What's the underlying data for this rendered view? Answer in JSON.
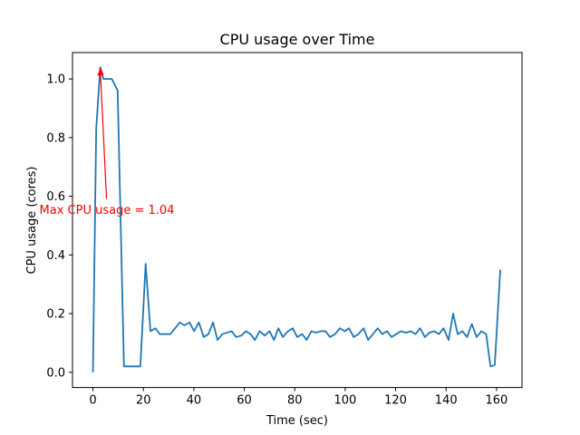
{
  "chart_data": {
    "type": "line",
    "title": "CPU usage over Time",
    "xlabel": "Time (sec)",
    "ylabel": "CPU usage (cores)",
    "xlim": [
      -8.1,
      170.1
    ],
    "ylim": [
      -0.052,
      1.09
    ],
    "xticks": [
      0,
      20,
      40,
      60,
      80,
      100,
      120,
      140,
      160
    ],
    "yticks": [
      0.0,
      0.2,
      0.4,
      0.6,
      0.8,
      1.0
    ],
    "grid": false,
    "colors": {
      "line": "#1f77b4",
      "annotation": "#ff0000"
    },
    "annotation": {
      "text": "Max CPU usage = 1.04",
      "point": [
        2.9,
        1.04
      ],
      "text_pos": [
        5.4,
        0.59
      ]
    },
    "series": [
      {
        "x": [
          0,
          1.3,
          2.9,
          4.2,
          5.3,
          7.5,
          9.8,
          12.3,
          14.0,
          16.3,
          18.8,
          20.9,
          22.8,
          24.8,
          26.5,
          28.7,
          30.7,
          32.6,
          34.4,
          36.3,
          38.3,
          40.1,
          42.0,
          43.9,
          45.8,
          47.6,
          49.4,
          51.3,
          53.1,
          55.0,
          56.8,
          58.8,
          60.7,
          62.5,
          64.2,
          66.1,
          68.1,
          70.0,
          71.8,
          73.5,
          75.3,
          77.3,
          79.2,
          81.0,
          83.0,
          84.7,
          86.6,
          88.5,
          90.3,
          92.2,
          94.0,
          96.0,
          97.9,
          99.8,
          101.5,
          103.4,
          105.2,
          107.3,
          109.1,
          111.0,
          112.9,
          114.7,
          116.6,
          118.4,
          120.2,
          122.1,
          124.0,
          126.0,
          127.9,
          129.7,
          131.6,
          133.4,
          135.3,
          137.2,
          139.0,
          141.0,
          142.8,
          144.6,
          146.5,
          148.3,
          150.2,
          152.1,
          154.0,
          155.9,
          157.6,
          159.3,
          161.5
        ],
        "values": [
          0.0,
          0.83,
          1.04,
          1.0,
          1.0,
          1.0,
          0.96,
          0.02,
          0.02,
          0.02,
          0.02,
          0.37,
          0.14,
          0.15,
          0.13,
          0.13,
          0.13,
          0.15,
          0.17,
          0.16,
          0.17,
          0.14,
          0.17,
          0.12,
          0.13,
          0.17,
          0.11,
          0.13,
          0.135,
          0.14,
          0.12,
          0.125,
          0.14,
          0.13,
          0.11,
          0.14,
          0.125,
          0.14,
          0.11,
          0.15,
          0.12,
          0.14,
          0.15,
          0.12,
          0.13,
          0.11,
          0.14,
          0.135,
          0.14,
          0.14,
          0.12,
          0.13,
          0.15,
          0.14,
          0.15,
          0.12,
          0.13,
          0.15,
          0.11,
          0.13,
          0.15,
          0.13,
          0.14,
          0.12,
          0.13,
          0.14,
          0.135,
          0.14,
          0.13,
          0.15,
          0.12,
          0.135,
          0.14,
          0.13,
          0.15,
          0.11,
          0.2,
          0.13,
          0.14,
          0.12,
          0.165,
          0.12,
          0.14,
          0.13,
          0.02,
          0.025,
          0.35
        ]
      }
    ]
  }
}
